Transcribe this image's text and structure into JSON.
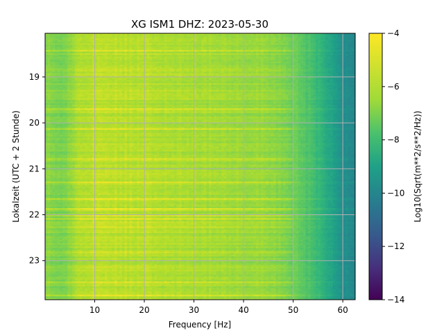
{
  "chart_data": {
    "type": "heatmap",
    "title": "XG ISM1  DHZ: 2023-05-30",
    "xlabel": "Frequency [Hz]",
    "ylabel": "Lokalzeit (UTC + 2 Stunde)",
    "xlim": [
      0,
      62.5
    ],
    "ylim": [
      23.85,
      18.05
    ],
    "x_ticks": [
      10,
      20,
      30,
      40,
      50,
      60
    ],
    "y_ticks": [
      19,
      20,
      21,
      22,
      23
    ],
    "grid": true,
    "colormap": "viridis",
    "colorbar": {
      "label": "Log10(Sqrt(m**2/s**2/Hz))",
      "range": [
        -14,
        -4
      ],
      "ticks": [
        -4,
        -6,
        -8,
        -10,
        -12,
        -14
      ]
    },
    "spectral_profile": {
      "frequency_hz": [
        0,
        2,
        4,
        6,
        10,
        20,
        30,
        40,
        45,
        50,
        52,
        55,
        58,
        60,
        62.5
      ],
      "log10_amplitude": [
        -5.7,
        -5.9,
        -6.1,
        -5.3,
        -5.0,
        -5.1,
        -5.3,
        -5.5,
        -5.6,
        -6.2,
        -6.6,
        -7.3,
        -8.3,
        -9.0,
        -9.4
      ]
    }
  }
}
